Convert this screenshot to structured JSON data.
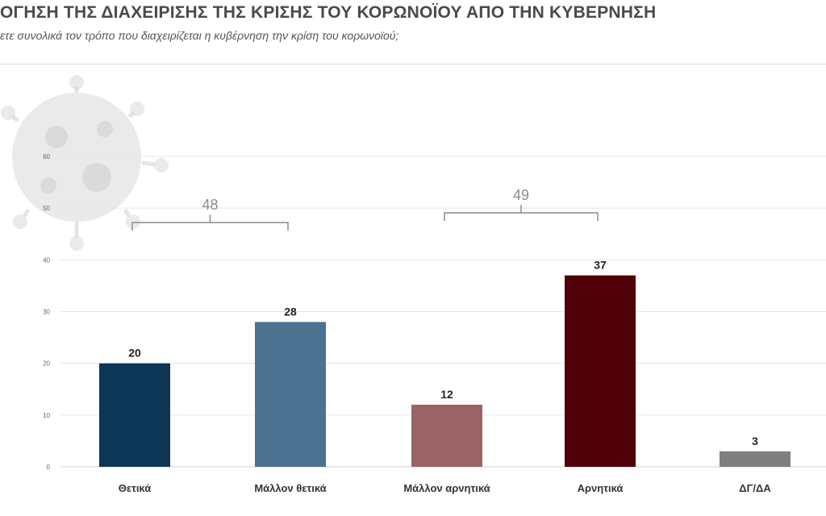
{
  "header": {
    "title": "ΟΓΗΣΗ ΤΗΣ ΔΙΑΧΕΙΡΙΣΗΣ ΤΗΣ ΚΡΙΣΗΣ ΤΟΥ ΚΟΡΩΝΟΪΟΥ ΑΠΟ ΤΗΝ ΚΥΒΕΡΝΗΣΗ",
    "subtitle": "ετε συνολικά τον τρόπο που διαχειρίζεται η κυβέρνηση την κρίση του κορωνοϊού;"
  },
  "chart_data": {
    "type": "bar",
    "categories": [
      "Θετικά",
      "Μάλλον θετικά",
      "Μάλλον αρνητικά",
      "Αρνητικά",
      "ΔΓ/ΔΑ"
    ],
    "values": [
      20,
      28,
      12,
      37,
      3
    ],
    "data_labels": [
      "20",
      "28",
      "12",
      "37",
      "3"
    ],
    "colors": [
      "#0d3556",
      "#4d7191",
      "#9a6466",
      "#500008",
      "#7f7f7f"
    ],
    "ylim": [
      0,
      60
    ],
    "yticks": [
      "0",
      "10",
      "20",
      "30",
      "40",
      "50",
      "60"
    ],
    "grid": true,
    "legend": "none",
    "groups": [
      {
        "label": "48",
        "from": 0,
        "to": 1
      },
      {
        "label": "49",
        "from": 2,
        "to": 3
      }
    ]
  }
}
